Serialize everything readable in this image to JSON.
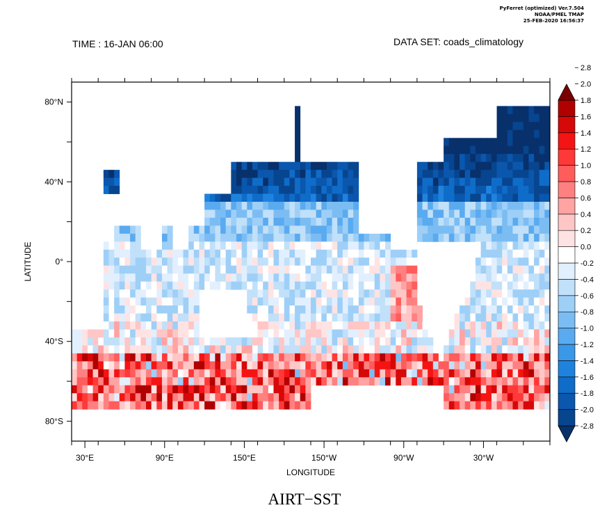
{
  "header": {
    "stamp": [
      "PyFerret (optimized) Ver.7.504",
      "NOAA/PMEL TMAP",
      "25-FEB-2020 16:56:37"
    ],
    "time": "TIME : 16-JAN 06:00",
    "dataset": "DATA SET: coads_climatology",
    "title": "AIRT−SST"
  },
  "map": {
    "xlabel": "LONGITUDE",
    "ylabel": "LATITUDE",
    "lon_range": [
      20,
      380
    ],
    "lat_range": [
      -90,
      90
    ],
    "x_ticks": [
      {
        "lon": 30,
        "label": "30°E"
      },
      {
        "lon": 90,
        "label": "90°E"
      },
      {
        "lon": 150,
        "label": "150°E"
      },
      {
        "lon": 210,
        "label": "150°W"
      },
      {
        "lon": 270,
        "label": "90°W"
      },
      {
        "lon": 330,
        "label": "30°W"
      }
    ],
    "y_ticks": [
      {
        "lat": 80,
        "label": "80°N"
      },
      {
        "lat": 40,
        "label": "40°N"
      },
      {
        "lat": 0,
        "label": "0°"
      },
      {
        "lat": -40,
        "label": "40°S"
      },
      {
        "lat": -80,
        "label": "80°S"
      }
    ]
  },
  "colorbar": {
    "levels": [
      "-2.8",
      "-2.0",
      "-1.8",
      "-1.6",
      "-1.4",
      "-1.2",
      "-1.0",
      "-0.8",
      "-0.6",
      "-0.4",
      "-0.2",
      "0.0",
      "0.2",
      "0.4",
      "0.6",
      "0.8",
      "1.0",
      "1.2",
      "1.4",
      "1.6",
      "1.8",
      "2.0",
      "2.8"
    ],
    "colors": [
      "#08306b",
      "#08458f",
      "#0a57ad",
      "#0f6cc9",
      "#1f83de",
      "#3a98e8",
      "#5aaaf0",
      "#7bbdf3",
      "#9ecff7",
      "#c1e0f9",
      "#e2efff",
      "#ffffff",
      "#ffe3e3",
      "#ffc6c6",
      "#ffa3a3",
      "#ff8080",
      "#ff5c5c",
      "#ff3838",
      "#f51414",
      "#d60808",
      "#b00000",
      "#7a0000"
    ]
  }
}
